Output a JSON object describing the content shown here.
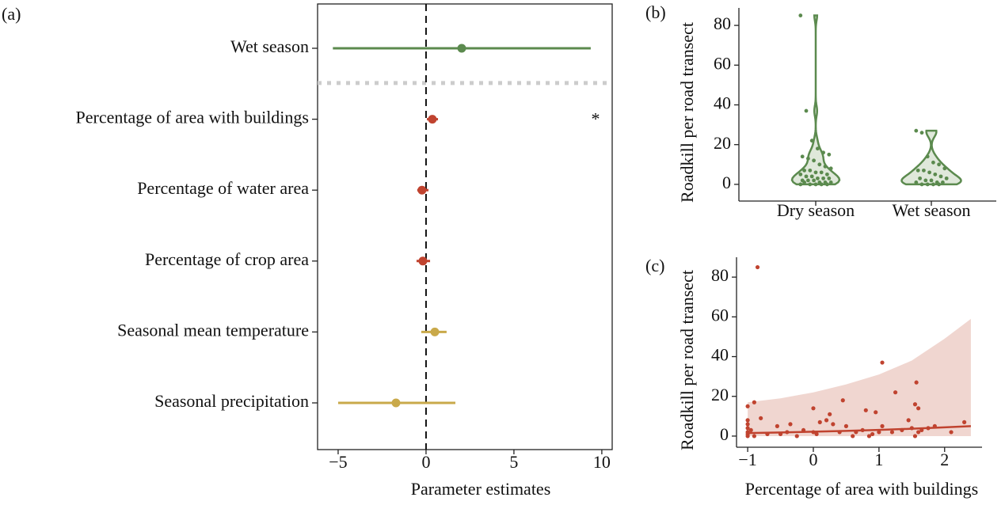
{
  "chart_data": [
    {
      "type": "forest",
      "label": "(a)",
      "categories": [
        "Wet season",
        "Percentage of area with buildings",
        "Percentage of water area",
        "Percentage of crop area",
        "Seasonal mean temperature",
        "Seasonal precipitation"
      ],
      "values": [
        2.03,
        0.36,
        -0.23,
        -0.18,
        0.5,
        -1.71
      ],
      "lower": [
        -5.3,
        0.05,
        -0.5,
        -0.54,
        -0.27,
        -5.0
      ],
      "upper": [
        9.37,
        0.68,
        0.14,
        0.23,
        1.17,
        1.67
      ],
      "colors": [
        "#5b8a4e",
        "#c0432f",
        "#c0432f",
        "#c0432f",
        "#c9a94a",
        "#c9a94a"
      ],
      "significance": [
        null,
        "*",
        null,
        null,
        null,
        null
      ],
      "reference_line": 0,
      "xlabel": "Parameter estimates",
      "xlim": [
        -6.17,
        10.59
      ],
      "xticks": [
        {
          "value": -5,
          "label": "−5"
        },
        0,
        5,
        10
      ]
    },
    {
      "type": "violin",
      "label": "(b)",
      "categories": [
        "Dry season",
        "Wet season"
      ],
      "values": [
        [
          85,
          37,
          22,
          18,
          16,
          15,
          14,
          13,
          12,
          10,
          9,
          8,
          7,
          7,
          6,
          6,
          5,
          5,
          4,
          4,
          3,
          3,
          3,
          2,
          2,
          2,
          1,
          1,
          1,
          1,
          0,
          0,
          0,
          0,
          0
        ],
        [
          27,
          26,
          14,
          11,
          10,
          8,
          7,
          7,
          6,
          5,
          4,
          3,
          3,
          2,
          2,
          1,
          1,
          1,
          0,
          0,
          0,
          0
        ]
      ],
      "color": "#5b8a4e",
      "fill": "#dfe8da",
      "ylabel": "Roadkill per road transect",
      "ylim": [
        -8.4,
        88.8
      ],
      "yticks": [
        0,
        20,
        40,
        60,
        80
      ]
    },
    {
      "type": "scatter",
      "label": "(c)",
      "x": [
        -0.85,
        1.05,
        1.57,
        1.25,
        -1,
        -0.9,
        0.45,
        0,
        1.6,
        0.25,
        0.8,
        1.55,
        0.95,
        -0.8,
        -1,
        -1,
        -0.55,
        -0.35,
        -0.15,
        0.1,
        0.2,
        0.3,
        0.5,
        0.65,
        0.75,
        0.9,
        1.05,
        1.2,
        1.35,
        1.45,
        1.5,
        1.65,
        1.75,
        1.85,
        2.1,
        2.3,
        -1,
        -1,
        -1,
        -1,
        -0.95,
        -0.7,
        -0.5,
        -0.4,
        -0.25,
        0,
        0.05,
        0.4,
        0.6,
        0.85,
        1.0,
        1.55,
        1.6,
        -0.9
      ],
      "y": [
        85,
        37,
        27,
        22,
        15,
        17,
        18,
        14,
        14,
        11,
        13,
        16,
        12,
        9,
        8,
        6,
        5,
        6,
        3,
        7,
        8,
        6,
        5,
        2,
        3,
        1,
        5,
        2,
        3,
        8,
        4,
        3,
        4,
        5,
        2,
        7,
        4,
        2,
        1,
        0,
        3,
        1,
        1,
        2,
        0,
        2,
        1,
        2,
        0,
        0,
        2,
        0,
        2,
        0
      ],
      "fit": {
        "x": [
          -1,
          -0.5,
          0,
          0.5,
          1,
          1.5,
          2,
          2.4
        ],
        "y": [
          1.5,
          1.8,
          2.2,
          2.6,
          3.1,
          3.7,
          4.4,
          5.0
        ],
        "lower": [
          0,
          0,
          0,
          0,
          0,
          0,
          0,
          0
        ],
        "upper": [
          17,
          19,
          22,
          26,
          31,
          38,
          49,
          59
        ]
      },
      "color": "#c0432f",
      "band_color": "#f0d6d0",
      "xlabel": "Percentage of area with buildings",
      "ylabel": "Roadkill per road transect",
      "xlim": [
        -1.17,
        2.57
      ],
      "ylim": [
        -5.6,
        90
      ],
      "xticks": [
        {
          "value": -1,
          "label": "−1"
        },
        0,
        1,
        2
      ],
      "yticks": [
        0,
        20,
        40,
        60,
        80
      ]
    }
  ]
}
